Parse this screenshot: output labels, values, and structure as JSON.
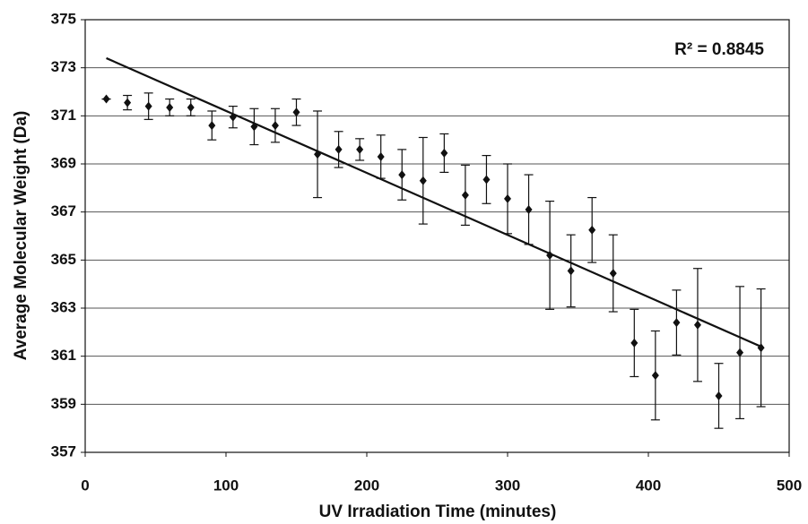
{
  "chart_data": {
    "type": "scatter",
    "xlabel": "UV Irradiation Time (minutes)",
    "ylabel": "Average Molecular Weight (Da)",
    "annotation": "R² = 0.8845",
    "x": [
      15,
      30,
      45,
      60,
      75,
      90,
      105,
      120,
      135,
      150,
      165,
      180,
      195,
      210,
      225,
      240,
      255,
      270,
      285,
      300,
      315,
      330,
      345,
      360,
      375,
      390,
      405,
      420,
      435,
      450,
      465,
      480
    ],
    "values": [
      371.7,
      371.55,
      371.4,
      371.35,
      371.35,
      370.6,
      370.95,
      370.55,
      370.6,
      371.15,
      369.4,
      369.6,
      369.6,
      369.3,
      368.55,
      368.3,
      369.45,
      367.7,
      368.35,
      367.55,
      367.1,
      365.2,
      364.55,
      366.25,
      364.45,
      361.55,
      360.2,
      362.4,
      362.3,
      359.35,
      361.15,
      361.35
    ],
    "errors": [
      0,
      0.3,
      0.55,
      0.35,
      0.35,
      0.6,
      0.45,
      0.75,
      0.7,
      0.55,
      1.8,
      0.75,
      0.45,
      0.9,
      1.05,
      1.8,
      0.8,
      1.25,
      1.0,
      1.45,
      1.45,
      2.25,
      1.5,
      1.35,
      1.6,
      1.4,
      1.85,
      1.35,
      2.35,
      1.35,
      2.75,
      2.45
    ],
    "color": "#111111",
    "trendline": {
      "x": [
        15,
        480
      ],
      "values": [
        373.4,
        361.4
      ]
    },
    "xlim": [
      0,
      500
    ],
    "xticks": [
      0,
      100,
      200,
      300,
      400,
      500
    ],
    "ylim": [
      357,
      375
    ],
    "yticks": [
      357,
      359,
      361,
      363,
      365,
      367,
      369,
      371,
      373,
      375
    ],
    "grid": true
  }
}
